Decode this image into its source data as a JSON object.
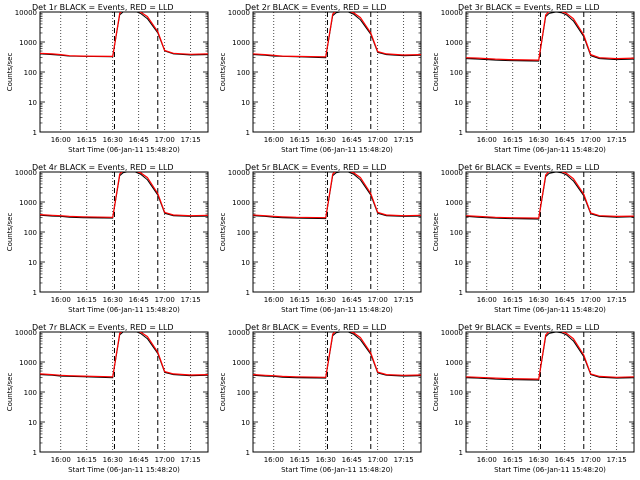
{
  "figure": {
    "xlabel": "Start Time (06-Jan-11 15:48:20)",
    "ylabel": "Counts/sec",
    "colors": {
      "events": "#000000",
      "lld": "#ff0000",
      "axes": "#000000"
    }
  },
  "chart_data": [
    {
      "type": "line",
      "title": "Det 1r BLACK = Events, RED = LLD",
      "xlabel": "Start Time (06-Jan-11 15:48:20)",
      "ylabel": "Counts/sec",
      "x_ticks": [
        "16:00",
        "16:15",
        "16:30",
        "16:45",
        "17:00",
        "17:15"
      ],
      "y_ticks": [
        "1",
        "10",
        "100",
        "1000",
        "10000"
      ],
      "yscale": "log",
      "ylim": [
        1,
        10000
      ],
      "x": [
        "15:48",
        "15:55",
        "16:00",
        "16:05",
        "16:13",
        "16:30",
        "16:34",
        "16:36",
        "16:40",
        "16:43",
        "16:46",
        "16:50",
        "16:56",
        "17:00",
        "17:05",
        "17:15",
        "17:25"
      ],
      "series": [
        {
          "name": "Events",
          "values": [
            400,
            380,
            360,
            340,
            330,
            320,
            8000,
            10000,
            11000,
            10500,
            9000,
            6000,
            2000,
            500,
            400,
            370,
            380
          ]
        },
        {
          "name": "LLD",
          "values": [
            420,
            400,
            380,
            350,
            340,
            330,
            9000,
            12000,
            13000,
            12000,
            10000,
            7000,
            2200,
            520,
            420,
            390,
            400
          ]
        }
      ],
      "markers": [
        "16:31",
        "16:56"
      ]
    },
    {
      "type": "line",
      "title": "Det 2r BLACK = Events, RED = LLD",
      "xlabel": "Start Time (06-Jan-11 15:48:20)",
      "ylabel": "Counts/sec",
      "x_ticks": [
        "16:00",
        "16:15",
        "16:30",
        "16:45",
        "17:00",
        "17:15"
      ],
      "y_ticks": [
        "1",
        "10",
        "100",
        "1000",
        "10000"
      ],
      "yscale": "log",
      "ylim": [
        1,
        10000
      ],
      "x": [
        "15:48",
        "15:55",
        "16:00",
        "16:05",
        "16:13",
        "16:30",
        "16:34",
        "16:36",
        "16:40",
        "16:43",
        "16:46",
        "16:50",
        "16:56",
        "17:00",
        "17:05",
        "17:15",
        "17:25"
      ],
      "series": [
        {
          "name": "Events",
          "values": [
            380,
            360,
            340,
            330,
            320,
            300,
            7500,
            9500,
            10500,
            10000,
            8500,
            5500,
            1800,
            450,
            380,
            350,
            360
          ]
        },
        {
          "name": "LLD",
          "values": [
            400,
            380,
            360,
            340,
            330,
            320,
            8500,
            11000,
            12000,
            11000,
            9500,
            6500,
            2000,
            480,
            400,
            370,
            380
          ]
        }
      ],
      "markers": [
        "16:31",
        "16:56"
      ]
    },
    {
      "type": "line",
      "title": "Det 3r BLACK = Events, RED = LLD",
      "xlabel": "Start Time (06-Jan-11 15:48:20)",
      "ylabel": "Counts/sec",
      "x_ticks": [
        "16:00",
        "16:15",
        "16:30",
        "16:45",
        "17:00",
        "17:15"
      ],
      "y_ticks": [
        "1",
        "10",
        "100",
        "1000",
        "10000"
      ],
      "yscale": "log",
      "ylim": [
        1,
        10000
      ],
      "x": [
        "15:48",
        "15:55",
        "16:00",
        "16:05",
        "16:13",
        "16:30",
        "16:34",
        "16:36",
        "16:40",
        "16:43",
        "16:46",
        "16:50",
        "16:56",
        "17:00",
        "17:05",
        "17:15",
        "17:25"
      ],
      "series": [
        {
          "name": "Events",
          "values": [
            280,
            270,
            260,
            250,
            240,
            230,
            7000,
            9000,
            10000,
            9500,
            8000,
            5000,
            1500,
            350,
            280,
            260,
            270
          ]
        },
        {
          "name": "LLD",
          "values": [
            300,
            290,
            280,
            270,
            260,
            250,
            8000,
            10500,
            11500,
            10500,
            9000,
            6000,
            1700,
            380,
            300,
            280,
            290
          ]
        }
      ],
      "markers": [
        "16:31",
        "16:56"
      ]
    },
    {
      "type": "line",
      "title": "Det 4r BLACK = Events, RED = LLD",
      "xlabel": "Start Time (06-Jan-11 15:48:20)",
      "ylabel": "Counts/sec",
      "x_ticks": [
        "16:00",
        "16:15",
        "16:30",
        "16:45",
        "17:00",
        "17:15"
      ],
      "y_ticks": [
        "1",
        "10",
        "100",
        "1000",
        "10000"
      ],
      "yscale": "log",
      "ylim": [
        1,
        10000
      ],
      "x": [
        "15:48",
        "15:55",
        "16:00",
        "16:05",
        "16:13",
        "16:30",
        "16:34",
        "16:36",
        "16:40",
        "16:43",
        "16:46",
        "16:50",
        "16:56",
        "17:00",
        "17:05",
        "17:15",
        "17:25"
      ],
      "series": [
        {
          "name": "Events",
          "values": [
            360,
            340,
            330,
            310,
            300,
            290,
            7500,
            9500,
            10500,
            10000,
            8500,
            5500,
            1700,
            420,
            350,
            330,
            340
          ]
        },
        {
          "name": "LLD",
          "values": [
            380,
            360,
            350,
            330,
            320,
            310,
            8500,
            11000,
            12000,
            11000,
            9500,
            6500,
            1900,
            450,
            370,
            350,
            360
          ]
        }
      ],
      "markers": [
        "16:31",
        "16:56"
      ]
    },
    {
      "type": "line",
      "title": "Det 5r BLACK = Events, RED = LLD",
      "xlabel": "Start Time (06-Jan-11 15:48:20)",
      "ylabel": "Counts/sec",
      "x_ticks": [
        "16:00",
        "16:15",
        "16:30",
        "16:45",
        "17:00",
        "17:15"
      ],
      "y_ticks": [
        "1",
        "10",
        "100",
        "1000",
        "10000"
      ],
      "yscale": "log",
      "ylim": [
        1,
        10000
      ],
      "x": [
        "15:48",
        "15:55",
        "16:00",
        "16:05",
        "16:13",
        "16:30",
        "16:34",
        "16:36",
        "16:40",
        "16:43",
        "16:46",
        "16:50",
        "16:56",
        "17:00",
        "17:05",
        "17:15",
        "17:25"
      ],
      "series": [
        {
          "name": "Events",
          "values": [
            350,
            330,
            310,
            300,
            290,
            280,
            7500,
            9500,
            10500,
            10000,
            8500,
            5500,
            1700,
            420,
            350,
            330,
            340
          ]
        },
        {
          "name": "LLD",
          "values": [
            370,
            350,
            330,
            320,
            310,
            300,
            8500,
            11000,
            12000,
            11000,
            9500,
            6500,
            1900,
            450,
            370,
            350,
            360
          ]
        }
      ],
      "markers": [
        "16:31",
        "16:56"
      ]
    },
    {
      "type": "line",
      "title": "Det 6r BLACK = Events, RED = LLD",
      "xlabel": "Start Time (06-Jan-11 15:48:20)",
      "ylabel": "Counts/sec",
      "x_ticks": [
        "16:00",
        "16:15",
        "16:30",
        "16:45",
        "17:00",
        "17:15"
      ],
      "y_ticks": [
        "1",
        "10",
        "100",
        "1000",
        "10000"
      ],
      "yscale": "log",
      "ylim": [
        1,
        10000
      ],
      "x": [
        "15:48",
        "15:55",
        "16:00",
        "16:05",
        "16:13",
        "16:30",
        "16:34",
        "16:36",
        "16:40",
        "16:43",
        "16:46",
        "16:50",
        "16:56",
        "17:00",
        "17:05",
        "17:15",
        "17:25"
      ],
      "series": [
        {
          "name": "Events",
          "values": [
            330,
            310,
            300,
            290,
            280,
            270,
            7000,
            9000,
            10000,
            9500,
            8000,
            5000,
            1600,
            400,
            330,
            310,
            320
          ]
        },
        {
          "name": "LLD",
          "values": [
            350,
            330,
            320,
            310,
            300,
            290,
            8000,
            10500,
            11500,
            10500,
            9000,
            6000,
            1800,
            430,
            350,
            330,
            340
          ]
        }
      ],
      "markers": [
        "16:31",
        "16:56"
      ]
    },
    {
      "type": "line",
      "title": "Det 7r BLACK = Events, RED = LLD",
      "xlabel": "Start Time (06-Jan-11 15:48:20)",
      "ylabel": "Counts/sec",
      "x_ticks": [
        "16:00",
        "16:15",
        "16:30",
        "16:45",
        "17:00",
        "17:15"
      ],
      "y_ticks": [
        "1",
        "10",
        "100",
        "1000",
        "10000"
      ],
      "yscale": "log",
      "ylim": [
        1,
        10000
      ],
      "x": [
        "15:48",
        "15:55",
        "16:00",
        "16:05",
        "16:13",
        "16:30",
        "16:34",
        "16:36",
        "16:40",
        "16:43",
        "16:46",
        "16:50",
        "16:56",
        "17:00",
        "17:05",
        "17:15",
        "17:25"
      ],
      "series": [
        {
          "name": "Events",
          "values": [
            380,
            360,
            340,
            330,
            320,
            300,
            8000,
            10000,
            11000,
            10500,
            9000,
            6000,
            1900,
            450,
            380,
            350,
            360
          ]
        },
        {
          "name": "LLD",
          "values": [
            400,
            380,
            360,
            350,
            340,
            320,
            9000,
            11500,
            12500,
            11500,
            10000,
            7000,
            2100,
            480,
            400,
            370,
            380
          ]
        }
      ],
      "markers": [
        "16:31",
        "16:56"
      ]
    },
    {
      "type": "line",
      "title": "Det 8r BLACK = Events, RED = LLD",
      "xlabel": "Start Time (06-Jan-11 15:48:20)",
      "ylabel": "Counts/sec",
      "x_ticks": [
        "16:00",
        "16:15",
        "16:30",
        "16:45",
        "17:00",
        "17:15"
      ],
      "y_ticks": [
        "1",
        "10",
        "100",
        "1000",
        "10000"
      ],
      "yscale": "log",
      "ylim": [
        1,
        10000
      ],
      "x": [
        "15:48",
        "15:55",
        "16:00",
        "16:05",
        "16:13",
        "16:30",
        "16:34",
        "16:36",
        "16:40",
        "16:43",
        "16:46",
        "16:50",
        "16:56",
        "17:00",
        "17:05",
        "17:15",
        "17:25"
      ],
      "series": [
        {
          "name": "Events",
          "values": [
            360,
            340,
            330,
            310,
            300,
            290,
            7500,
            9500,
            10500,
            10000,
            8500,
            5500,
            1800,
            430,
            360,
            340,
            350
          ]
        },
        {
          "name": "LLD",
          "values": [
            380,
            360,
            350,
            330,
            320,
            310,
            8500,
            11000,
            12000,
            11000,
            9500,
            6500,
            2000,
            460,
            380,
            360,
            370
          ]
        }
      ],
      "markers": [
        "16:31",
        "16:56"
      ]
    },
    {
      "type": "line",
      "title": "Det 9r BLACK = Events, RED = LLD",
      "xlabel": "Start Time (06-Jan-11 15:48:20)",
      "ylabel": "Counts/sec",
      "x_ticks": [
        "16:00",
        "16:15",
        "16:30",
        "16:45",
        "17:00",
        "17:15"
      ],
      "y_ticks": [
        "1",
        "10",
        "100",
        "1000",
        "10000"
      ],
      "yscale": "log",
      "ylim": [
        1,
        10000
      ],
      "x": [
        "15:48",
        "15:55",
        "16:00",
        "16:05",
        "16:13",
        "16:30",
        "16:34",
        "16:36",
        "16:40",
        "16:43",
        "16:46",
        "16:50",
        "16:56",
        "17:00",
        "17:05",
        "17:15",
        "17:25"
      ],
      "series": [
        {
          "name": "Events",
          "values": [
            300,
            290,
            280,
            270,
            260,
            250,
            7000,
            9000,
            10000,
            9500,
            8000,
            5000,
            1500,
            380,
            310,
            290,
            300
          ]
        },
        {
          "name": "LLD",
          "values": [
            320,
            310,
            300,
            290,
            280,
            270,
            8000,
            10500,
            11500,
            10500,
            9000,
            6000,
            1700,
            400,
            330,
            310,
            320
          ]
        }
      ],
      "markers": [
        "16:31",
        "16:56"
      ]
    }
  ]
}
